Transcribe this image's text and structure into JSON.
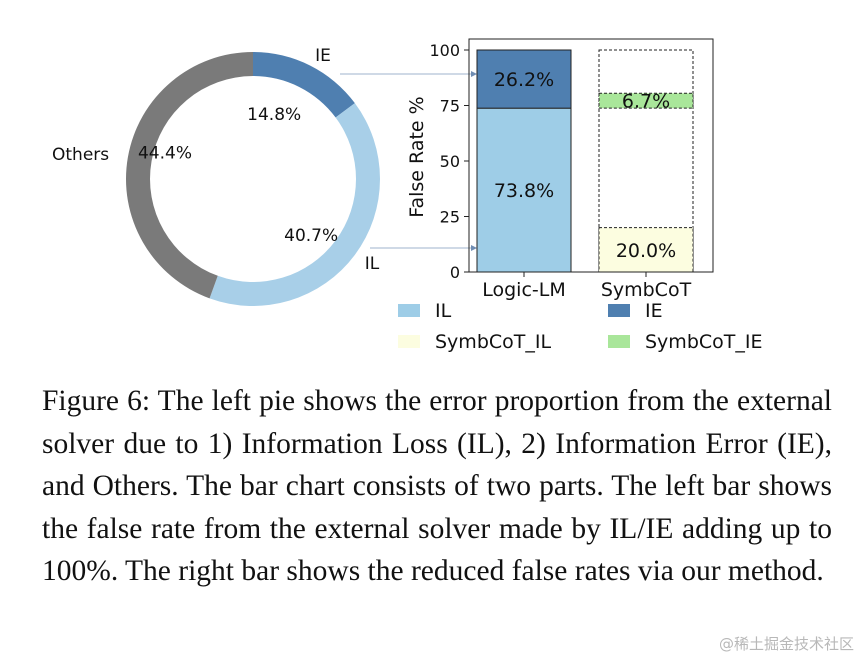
{
  "chart_data": [
    {
      "type": "pie",
      "style": "donut",
      "labels": [
        "IE",
        "IL",
        "Others"
      ],
      "values": [
        14.8,
        40.7,
        44.4
      ],
      "value_labels": [
        "14.8%",
        "40.7%",
        "44.4%"
      ],
      "colors": {
        "IE": "#4f7fb0",
        "IL": "#a8cfe8",
        "Others": "#7a7a7a"
      }
    },
    {
      "type": "bar",
      "stacked": true,
      "categories": [
        "Logic-LM",
        "SymbCoT"
      ],
      "ylabel": "False Rate %",
      "ylim": [
        0,
        100
      ],
      "yticks": [
        "0",
        "25",
        "50",
        "75",
        "100"
      ],
      "segments": [
        {
          "category": "Logic-LM",
          "name": "IL",
          "start": 0,
          "value": 73.8,
          "label": "73.8%",
          "color": "#9ecde7"
        },
        {
          "category": "Logic-LM",
          "name": "IE",
          "start": 73.8,
          "value": 26.2,
          "label": "26.2%",
          "color": "#4f7fb0"
        },
        {
          "category": "SymbCoT",
          "name": "SymbCoT_IL",
          "start": 0,
          "value": 20.0,
          "label": "20.0%",
          "color": "#fcfde0"
        },
        {
          "category": "SymbCoT",
          "name": "SymbCoT_IE",
          "start": 73.8,
          "value": 6.7,
          "label": "6.7%",
          "color": "#a9e69a"
        }
      ],
      "symbcot_frame_top": 100,
      "legend": [
        {
          "label": "IL",
          "color": "#9ecde7"
        },
        {
          "label": "IE",
          "color": "#4f7fb0"
        },
        {
          "label": "SymbCoT_IL",
          "color": "#fcfde0"
        },
        {
          "label": "SymbCoT_IE",
          "color": "#a9e69a"
        }
      ],
      "legend_position": "bottom"
    }
  ],
  "caption": "Figure 6: The left pie shows the error proportion from the external solver due to 1) Information Loss (IL), 2) Information Error (IE), and Others. The bar chart consists of two parts. The left bar shows the false rate from the external solver made by IL/IE adding up to 100%. The right bar shows the reduced false rates via our method.",
  "watermark": "@稀土掘金技术社区"
}
